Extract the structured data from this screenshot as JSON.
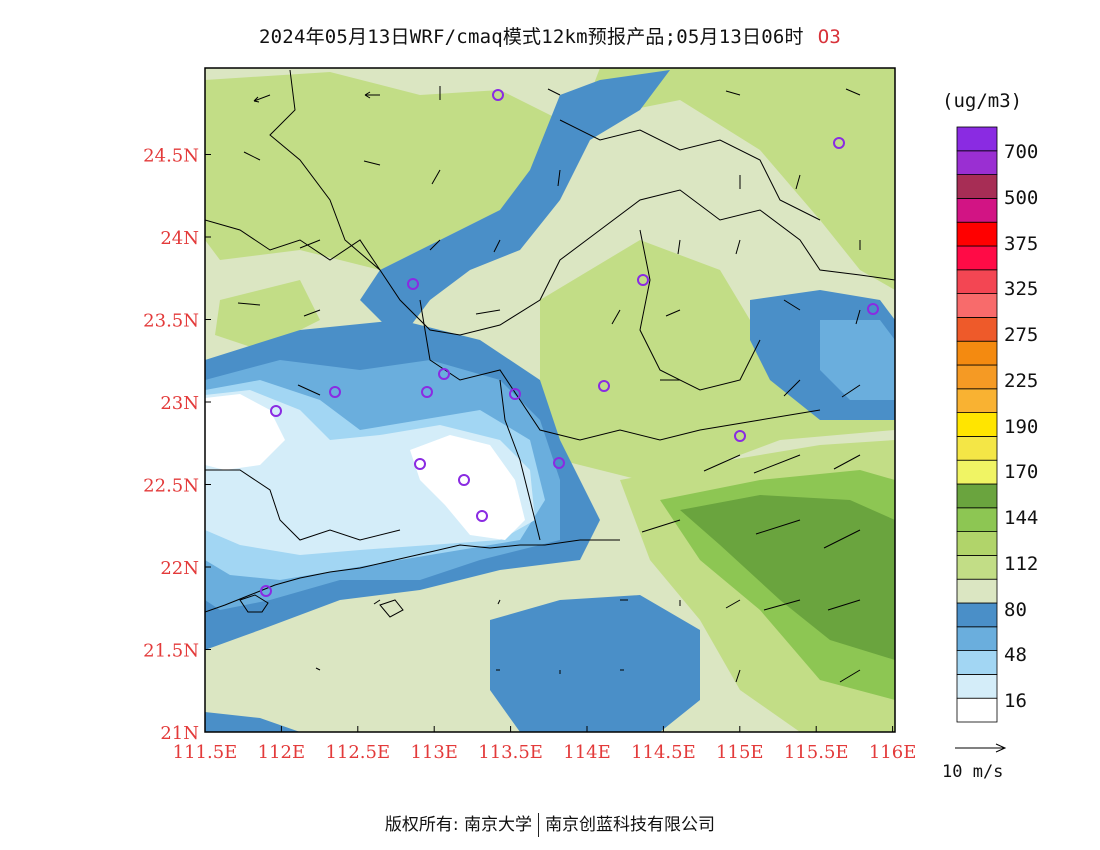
{
  "header": {
    "title": "2024年05月13日WRF/cmaq模式12km预报产品;05月13日06时",
    "pollutant": "O3"
  },
  "map": {
    "lon_labels": [
      "111.5E",
      "112E",
      "112.5E",
      "113E",
      "113.5E",
      "114E",
      "114.5E",
      "115E",
      "115.5E",
      "116E"
    ],
    "lat_labels": [
      "21N",
      "21.5N",
      "22N",
      "22.5N",
      "23N",
      "23.5N",
      "24N",
      "24.5N"
    ],
    "axis_label_color": "#e33a3a",
    "fill_colors": {
      "level_16": "#ffffff",
      "level_48": "#d4edf9",
      "level_64": "#a2d6f3",
      "level_80": "#6aaedd",
      "level_96": "#4a8fc8",
      "level_112": "#dbe6c2",
      "level_128": "#c2dd86",
      "level_144": "#8dc653",
      "level_160": "#6aa43e"
    },
    "station_marker_color": "#8a2be2"
  },
  "legend": {
    "unit": "(ug/m3)",
    "labels": [
      "700",
      "500",
      "375",
      "325",
      "275",
      "225",
      "190",
      "170",
      "144",
      "112",
      "80",
      "48",
      "16"
    ],
    "colors": [
      "#ffffff",
      "#d4edf9",
      "#a2d6f3",
      "#6aaedd",
      "#4a8fc8",
      "#dbe6c2",
      "#c2dd86",
      "#b1d46a",
      "#8dc653",
      "#6aa43e",
      "#f0f464",
      "#f4e646",
      "#ffe500",
      "#f9b232",
      "#f59a24",
      "#f48a10",
      "#ee5a2a",
      "#f86b6b",
      "#f34653",
      "#ff0b46",
      "#ff0000",
      "#d21484",
      "#a72d55",
      "#9a2fd2",
      "#8a2be2"
    ]
  },
  "wind_reference": {
    "label": "10 m/s"
  },
  "footer": {
    "left": "版权所有: 南京大学",
    "right": "南京创蓝科技有限公司"
  }
}
